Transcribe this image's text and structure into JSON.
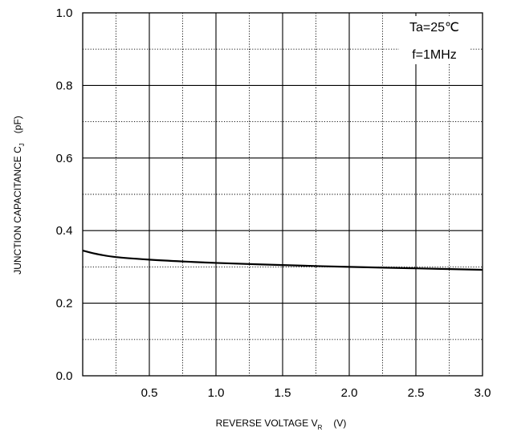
{
  "chart_data": {
    "type": "line",
    "xlabel": "REVERSE VOLTAGE   V",
    "xlabel_sub": "R",
    "xlabel_unit": "(V)",
    "ylabel": "JUNCTION CAPACITANCE C",
    "ylabel_sub": "J",
    "ylabel_unit": "(pF)",
    "xlim": [
      0,
      3.0
    ],
    "ylim": [
      0,
      1.0
    ],
    "x_ticks": [
      "0.5",
      "1.0",
      "1.5",
      "2.0",
      "2.5",
      "3.0"
    ],
    "x_tick_values": [
      0.5,
      1.0,
      1.5,
      2.0,
      2.5,
      3.0
    ],
    "y_ticks": [
      "0.0",
      "0.2",
      "0.4",
      "0.6",
      "0.8",
      "1.0"
    ],
    "y_tick_values": [
      0.0,
      0.2,
      0.4,
      0.6,
      0.8,
      1.0
    ],
    "grid": true,
    "annotations": [
      "Ta=25℃",
      "f=1MHz"
    ],
    "series": [
      {
        "x": [
          0,
          0.1,
          0.25,
          0.5,
          0.75,
          1.0,
          1.5,
          2.0,
          2.5,
          3.0
        ],
        "values": [
          0.345,
          0.336,
          0.327,
          0.32,
          0.315,
          0.311,
          0.305,
          0.3,
          0.296,
          0.292
        ]
      }
    ]
  }
}
